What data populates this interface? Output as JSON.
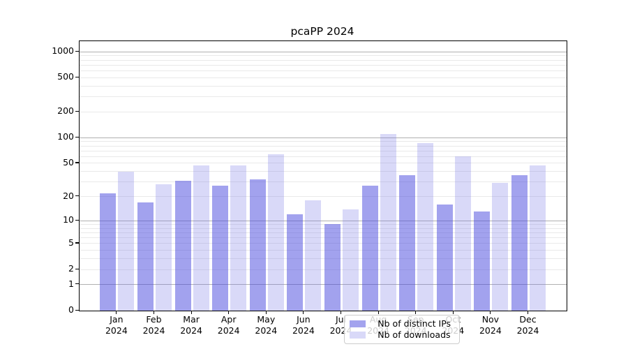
{
  "title": "pcaPP 2024",
  "chart_data": {
    "type": "bar",
    "title": "pcaPP 2024",
    "categories": [
      "Jan 2024",
      "Feb 2024",
      "Mar 2024",
      "Apr 2024",
      "May 2024",
      "Jun 2024",
      "Jul 2024",
      "Aug 2024",
      "Sep 2024",
      "Oct 2024",
      "Nov 2024",
      "Dec 2024"
    ],
    "series": [
      {
        "name": "Nb of distinct IPs",
        "color": "#a3a3ee",
        "values": [
          22,
          17,
          31,
          27,
          32,
          12,
          9,
          27,
          36,
          16,
          13,
          36
        ]
      },
      {
        "name": "Nb of downloads",
        "color": "#d9d9f8",
        "values": [
          40,
          28,
          47,
          47,
          64,
          18,
          14,
          110,
          87,
          60,
          29,
          47
        ]
      }
    ],
    "xlabel": "",
    "ylabel": "",
    "yscale": "symlog (log1p)",
    "ylim": [
      0,
      1300
    ],
    "yticks": [
      0,
      1,
      2,
      5,
      10,
      20,
      50,
      100,
      200,
      500,
      1000
    ],
    "y_major_gridlines": [
      1,
      10,
      100,
      1000
    ],
    "y_minor_gridlines": [
      2,
      3,
      4,
      5,
      6,
      7,
      8,
      9,
      20,
      30,
      40,
      50,
      60,
      70,
      80,
      90,
      200,
      300,
      400,
      500,
      600,
      700,
      800,
      900
    ],
    "grid": true,
    "legend_position": "lower center"
  },
  "colors": {
    "background": "#ffffff",
    "axis": "#000000",
    "grid_major": "#b0b0b0",
    "grid_minor": "#e9e9e9",
    "bar_distinct_ips_fill": "rgba(69,69,221,0.5)",
    "bar_downloads_fill": "rgba(119,119,230,0.28)",
    "legend_swatch_distinct_ips": "#a3a3ee",
    "legend_swatch_downloads": "#d9d9f8"
  }
}
